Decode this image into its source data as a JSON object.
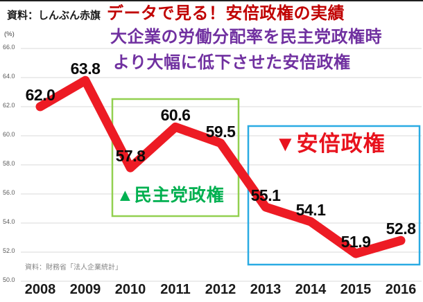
{
  "header": {
    "source": "資料：しんぶん赤旗",
    "title_line1": "データで見る！安倍政権の実績",
    "title_line2": "大企業の労働分配率を民主党政権時",
    "title_line3": "より大幅に低下させた安倍政権"
  },
  "chart_data": {
    "type": "line",
    "x": [
      "2008",
      "2009",
      "2010",
      "2011",
      "2012",
      "2013",
      "2014",
      "2015",
      "2016"
    ],
    "values": [
      62.0,
      63.8,
      57.8,
      60.6,
      59.5,
      55.1,
      54.1,
      51.9,
      52.8
    ],
    "point_labels": [
      "62.0",
      "63.8",
      "57.8",
      "60.6",
      "59.5",
      "55.1",
      "54.1",
      "51.9",
      "52.8"
    ],
    "unit_label": "(%)",
    "ylim": [
      50.0,
      66.0
    ],
    "ytick_step": 2.0,
    "yticks": [
      "66.0",
      "64.0",
      "62.0",
      "60.0",
      "58.0",
      "56.0",
      "54.0",
      "52.0",
      "50.0"
    ],
    "grid": true,
    "legend": "none",
    "annotations": [
      {
        "label": "▲民主党政権",
        "span": [
          "2010",
          "2012"
        ],
        "box_color": "#92d050",
        "label_color": "#00b050"
      },
      {
        "label": "▼安倍政権",
        "span": [
          "2013",
          "2016"
        ],
        "box_color": "#2aabe3",
        "label_color": "#e8121d"
      }
    ],
    "footnote": "資料：財務省「法人企業統計」"
  },
  "colors": {
    "line_red": "#ed1b24",
    "title_red": "#c00000",
    "title_purple": "#7030a0",
    "green_border": "#92d050",
    "green_label": "#00b050",
    "blue_border": "#2aabe3",
    "abe_red": "#e8121d",
    "grid_gray": "#d9d9d9",
    "tick_gray": "#595959"
  }
}
